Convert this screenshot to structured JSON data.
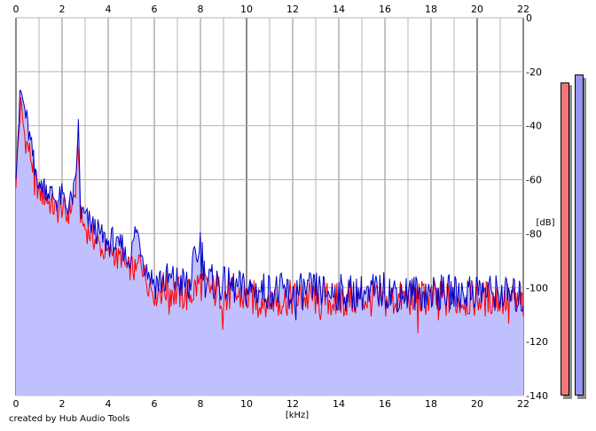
{
  "credit": "created by Hub Audio Tools",
  "colors": {
    "background": "#ffffff",
    "grid": "#b4b4b4",
    "grid_major": "#8a8a8a",
    "fill": "#c0c0ff",
    "left_channel": "#ff0000",
    "right_channel": "#0000c8",
    "meter_left": "#f07878",
    "meter_right": "#9696f0"
  },
  "chart_data": {
    "type": "line",
    "title": "",
    "xlabel": "[kHz]",
    "ylabel": "[dB]",
    "xlim": [
      0,
      22
    ],
    "ylim": [
      -140,
      0
    ],
    "x_ticks": [
      "0",
      "2",
      "4",
      "6",
      "8",
      "10",
      "12",
      "14",
      "16",
      "18",
      "20",
      "22"
    ],
    "y_ticks": [
      "0",
      "-20",
      "-40",
      "-60",
      "-80",
      "-100",
      "-120",
      "-140"
    ],
    "grid": true,
    "legend": "none",
    "x": [
      0,
      0.2,
      0.4,
      0.6,
      0.8,
      1.0,
      1.2,
      1.4,
      1.6,
      1.8,
      2.0,
      2.2,
      2.4,
      2.6,
      2.7,
      2.8,
      3.0,
      3.2,
      3.4,
      3.6,
      3.8,
      4.0,
      4.2,
      4.4,
      4.6,
      4.8,
      5.0,
      5.2,
      5.4,
      5.6,
      5.8,
      6.0,
      6.5,
      7.0,
      7.5,
      8.0,
      8.2,
      8.5,
      9.0,
      9.5,
      10.0,
      11.0,
      12.0,
      13.0,
      14.0,
      15.0,
      16.0,
      17.0,
      18.0,
      19.0,
      20.0,
      21.0,
      22.0
    ],
    "series": [
      {
        "values": [
          -60,
          -32,
          -45,
          -50,
          -58,
          -65,
          -66,
          -68,
          -70,
          -72,
          -70,
          -74,
          -70,
          -64,
          -45,
          -74,
          -78,
          -80,
          -82,
          -84,
          -86,
          -88,
          -86,
          -90,
          -88,
          -94,
          -92,
          -95,
          -88,
          -96,
          -99,
          -101,
          -100,
          -102,
          -103,
          -98,
          -100,
          -101,
          -102,
          -103,
          -104,
          -104,
          -104,
          -104,
          -105,
          -104,
          -105,
          -104,
          -104,
          -105,
          -104,
          -104,
          -106
        ]
      },
      {
        "values": [
          -55,
          -27,
          -35,
          -45,
          -55,
          -60,
          -62,
          -64,
          -66,
          -68,
          -66,
          -70,
          -68,
          -62,
          -38,
          -72,
          -74,
          -76,
          -78,
          -80,
          -82,
          -84,
          -82,
          -86,
          -84,
          -90,
          -88,
          -78,
          -84,
          -92,
          -95,
          -98,
          -97,
          -98,
          -99,
          -82,
          -97,
          -98,
          -99,
          -100,
          -101,
          -101,
          -102,
          -101,
          -102,
          -102,
          -101,
          -102,
          -102,
          -102,
          -101,
          -102,
          -104
        ]
      }
    ],
    "level_meters": {
      "scale": [
        -140,
        0
      ],
      "values": [
        -24,
        -21
      ]
    }
  }
}
